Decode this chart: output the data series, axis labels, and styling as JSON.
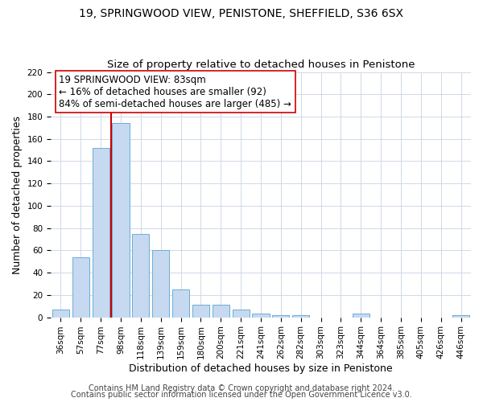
{
  "title": "19, SPRINGWOOD VIEW, PENISTONE, SHEFFIELD, S36 6SX",
  "subtitle": "Size of property relative to detached houses in Penistone",
  "xlabel": "Distribution of detached houses by size in Penistone",
  "ylabel": "Number of detached properties",
  "bar_labels": [
    "36sqm",
    "57sqm",
    "77sqm",
    "98sqm",
    "118sqm",
    "139sqm",
    "159sqm",
    "180sqm",
    "200sqm",
    "221sqm",
    "241sqm",
    "262sqm",
    "282sqm",
    "303sqm",
    "323sqm",
    "344sqm",
    "364sqm",
    "385sqm",
    "405sqm",
    "426sqm",
    "446sqm"
  ],
  "bar_values": [
    7,
    54,
    152,
    174,
    75,
    60,
    25,
    11,
    11,
    7,
    3,
    2,
    2,
    0,
    0,
    3,
    0,
    0,
    0,
    0,
    2
  ],
  "bar_color": "#c6d9f0",
  "bar_edge_color": "#6aaed6",
  "vline_x": 2.5,
  "vline_color": "#cc0000",
  "annotation_line1": "19 SPRINGWOOD VIEW: 83sqm",
  "annotation_line2": "← 16% of detached houses are smaller (92)",
  "annotation_line3": "84% of semi-detached houses are larger (485) →",
  "ylim": [
    0,
    220
  ],
  "yticks": [
    0,
    20,
    40,
    60,
    80,
    100,
    120,
    140,
    160,
    180,
    200,
    220
  ],
  "footer1": "Contains HM Land Registry data © Crown copyright and database right 2024.",
  "footer2": "Contains public sector information licensed under the Open Government Licence v3.0.",
  "title_fontsize": 10,
  "subtitle_fontsize": 9.5,
  "axis_label_fontsize": 9,
  "tick_fontsize": 7.5,
  "footer_fontsize": 7,
  "annotation_fontsize": 8.5,
  "background_color": "#ffffff",
  "grid_color": "#d0d8e8"
}
